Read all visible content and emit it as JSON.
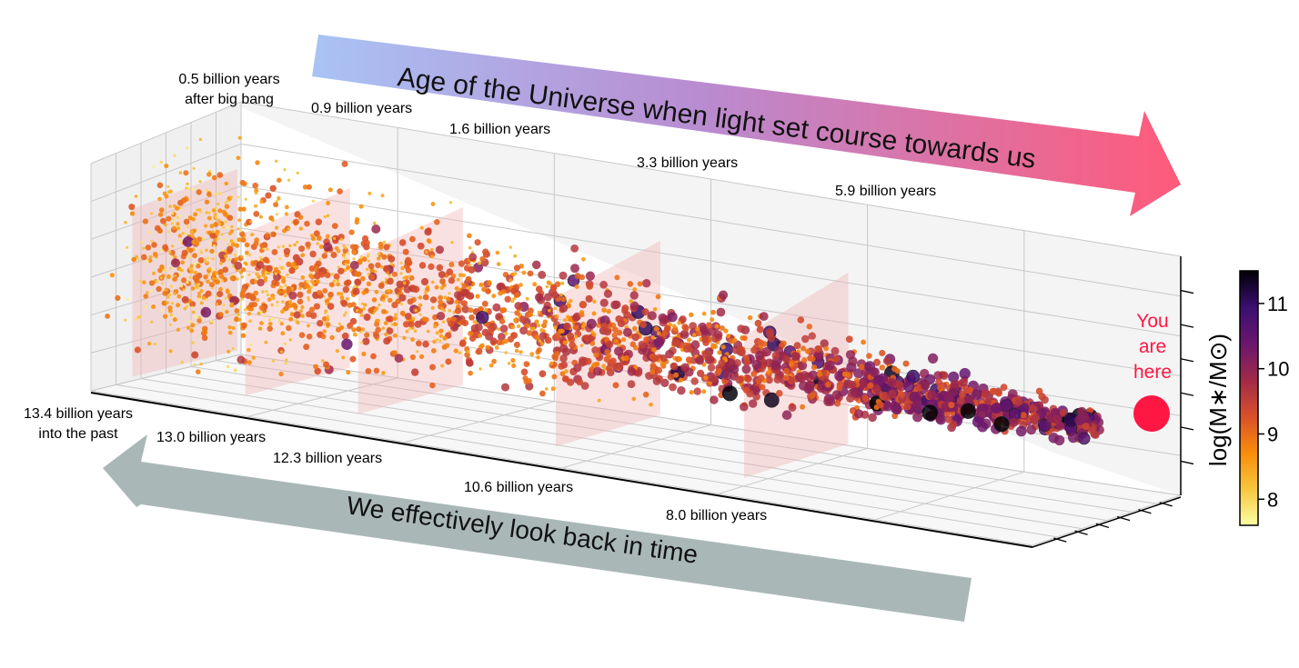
{
  "chart_data": {
    "type": "scatter",
    "projection": "3d",
    "banner_top": "Age of the Universe when light set course towards us",
    "banner_bottom": "We effectively look back in time",
    "age_labels": [
      {
        "line1": "0.5 billion years",
        "line2": "after big bang"
      },
      {
        "line1": "0.9 billion years",
        "line2": ""
      },
      {
        "line1": "1.6 billion years",
        "line2": ""
      },
      {
        "line1": "3.3 billion years",
        "line2": ""
      },
      {
        "line1": "5.9 billion years",
        "line2": ""
      }
    ],
    "lookback_labels": [
      {
        "line1": "13.4 billion years",
        "line2": "into the past"
      },
      {
        "line1": "13.0 billion years",
        "line2": ""
      },
      {
        "line1": "12.3 billion years",
        "line2": ""
      },
      {
        "line1": "10.6 billion years",
        "line2": ""
      },
      {
        "line1": "8.0 billion years",
        "line2": ""
      }
    ],
    "marker": {
      "line1": "You",
      "line2": "are",
      "line3": "here",
      "color": "#ff1744"
    },
    "colorbar": {
      "label": "log(M∗/M⊙)",
      "ticks": [
        8,
        9,
        10,
        11
      ],
      "range": [
        7.6,
        11.5
      ],
      "colormap": [
        "#fcffa4",
        "#f6c63d",
        "#f98c0a",
        "#d94f2b",
        "#a12a48",
        "#6a176e",
        "#3b0f70",
        "#000004"
      ]
    },
    "grid": true,
    "point_count": 2600
  }
}
